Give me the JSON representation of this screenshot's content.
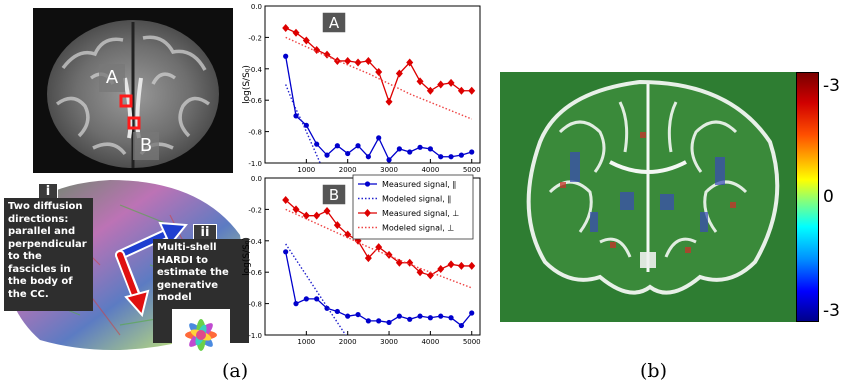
{
  "panel_a": {
    "label_a": "A",
    "label_b": "B",
    "note_i_badge": "i",
    "note_i_text": "Two diffusion directions: parallel and perpendicular to the fascicles in the body of the CC.",
    "note_ii_badge": "ii",
    "note_ii_text": "Multi-shell HARDI to estimate the generative model",
    "caption": "(a)"
  },
  "panel_b": {
    "caption": "(b)",
    "colorbar_ticks": [
      "-3",
      "0",
      "-3"
    ]
  },
  "chart_data": [
    {
      "type": "line",
      "panel_label": "A",
      "ylabel": "log(S/S₀)",
      "xlim": [
        0,
        5200
      ],
      "ylim": [
        -1.0,
        0.0
      ],
      "xticks": [
        1000,
        2000,
        3000,
        4000,
        5000
      ],
      "yticks": [
        "0.0",
        "-0.2",
        "-0.4",
        "-0.6",
        "-0.8",
        "-1.0"
      ],
      "series": [
        {
          "name": "Measured signal, ∥",
          "color": "#0000cc",
          "style": "line-markers",
          "marker": "circle",
          "x": [
            500,
            750,
            1000,
            1250,
            1500,
            1750,
            2000,
            2250,
            2500,
            2750,
            3000,
            3250,
            3500,
            3750,
            4000,
            4250,
            4500,
            4750,
            5000
          ],
          "y": [
            -0.32,
            -0.7,
            -0.76,
            -0.88,
            -0.95,
            -0.89,
            -0.94,
            -0.89,
            -0.96,
            -0.84,
            -0.98,
            -0.91,
            -0.93,
            -0.9,
            -0.91,
            -0.96,
            -0.96,
            -0.95,
            -0.93
          ]
        },
        {
          "name": "Modeled signal, ∥",
          "color": "#2222cc",
          "style": "dotted",
          "x": [
            500,
            700,
            900,
            1100,
            1300,
            1500
          ],
          "y": [
            -0.5,
            -0.63,
            -0.74,
            -0.86,
            -0.98,
            -1.1
          ]
        },
        {
          "name": "Measured signal, ⊥",
          "color": "#dd0000",
          "style": "line-markers",
          "marker": "diamond",
          "x": [
            500,
            750,
            1000,
            1250,
            1500,
            1750,
            2000,
            2250,
            2500,
            2750,
            3000,
            3250,
            3500,
            3750,
            4000,
            4250,
            4500,
            4750,
            5000
          ],
          "y": [
            -0.14,
            -0.17,
            -0.22,
            -0.28,
            -0.31,
            -0.35,
            -0.35,
            -0.36,
            -0.35,
            -0.42,
            -0.61,
            -0.43,
            -0.36,
            -0.48,
            -0.54,
            -0.5,
            -0.49,
            -0.54,
            -0.54
          ]
        },
        {
          "name": "Modeled signal, ⊥",
          "color": "#ee4444",
          "style": "dotted",
          "x": [
            500,
            1500,
            2500,
            3500,
            5000
          ],
          "y": [
            -0.2,
            -0.32,
            -0.43,
            -0.56,
            -0.72
          ]
        }
      ]
    },
    {
      "type": "line",
      "panel_label": "B",
      "ylabel": "log(S/S₀)",
      "xlim": [
        0,
        5200
      ],
      "ylim": [
        -1.0,
        0.0
      ],
      "xticks": [
        1000,
        2000,
        3000,
        4000,
        5000
      ],
      "yticks": [
        "0.0",
        "-0.2",
        "-0.4",
        "-0.6",
        "-0.8",
        "-1.0"
      ],
      "legend_position": "upper-right",
      "series": [
        {
          "name": "Measured signal, ∥",
          "color": "#0000cc",
          "style": "line-markers",
          "marker": "circle",
          "x": [
            500,
            750,
            1000,
            1250,
            1500,
            1750,
            2000,
            2250,
            2500,
            2750,
            3000,
            3250,
            3500,
            3750,
            4000,
            4250,
            4500,
            4750,
            5000
          ],
          "y": [
            -0.47,
            -0.8,
            -0.77,
            -0.77,
            -0.83,
            -0.85,
            -0.88,
            -0.87,
            -0.91,
            -0.91,
            -0.92,
            -0.88,
            -0.9,
            -0.88,
            -0.89,
            -0.88,
            -0.89,
            -0.94,
            -0.86
          ]
        },
        {
          "name": "Modeled signal, ∥",
          "color": "#2222cc",
          "style": "dotted",
          "x": [
            500,
            900,
            1300,
            1700,
            2100
          ],
          "y": [
            -0.42,
            -0.58,
            -0.74,
            -0.9,
            -1.06
          ]
        },
        {
          "name": "Measured signal, ⊥",
          "color": "#dd0000",
          "style": "line-markers",
          "marker": "diamond",
          "x": [
            500,
            750,
            1000,
            1250,
            1500,
            1750,
            2000,
            2250,
            2500,
            2750,
            3000,
            3250,
            3500,
            3750,
            4000,
            4250,
            4500,
            4750,
            5000
          ],
          "y": [
            -0.14,
            -0.2,
            -0.24,
            -0.24,
            -0.21,
            -0.3,
            -0.36,
            -0.4,
            -0.51,
            -0.44,
            -0.49,
            -0.54,
            -0.54,
            -0.6,
            -0.62,
            -0.58,
            -0.55,
            -0.56,
            -0.56
          ]
        },
        {
          "name": "Modeled signal, ⊥",
          "color": "#ee4444",
          "style": "dotted",
          "x": [
            500,
            1500,
            2500,
            3500,
            5000
          ],
          "y": [
            -0.2,
            -0.32,
            -0.44,
            -0.55,
            -0.7
          ]
        }
      ]
    }
  ]
}
